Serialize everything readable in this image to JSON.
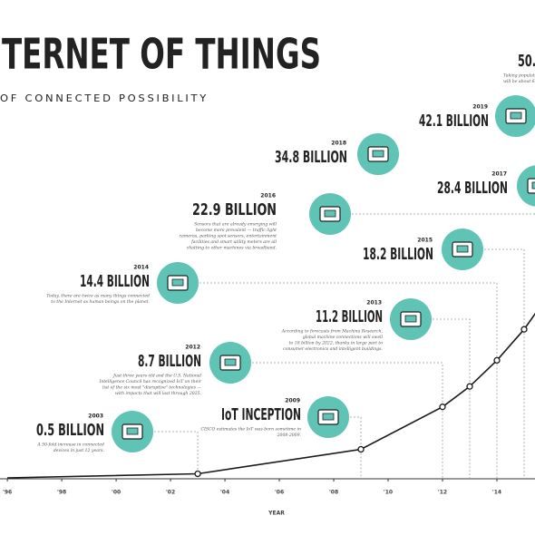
{
  "chart_data": {
    "type": "line",
    "title": "TERNET OF THINGS",
    "subtitle": "OF CONNECTED POSSIBILITY",
    "x_label": "YEAR",
    "x": [
      1996,
      2003,
      2009,
      2012,
      2013,
      2014,
      2015,
      2016
    ],
    "values": [
      0,
      0.5,
      3.5,
      8.7,
      11.2,
      14.4,
      18.2,
      22.9
    ],
    "color": "#1a1a1a",
    "xlim": [
      1995.73,
      2015.4
    ],
    "ylim": [
      0,
      50
    ],
    "xticks": [
      {
        "value": 1996,
        "label": "'96"
      },
      {
        "value": 1998,
        "label": "'98"
      },
      {
        "value": 2000,
        "label": "'00"
      },
      {
        "value": 2002,
        "label": "'02"
      },
      {
        "value": 2004,
        "label": "'04"
      },
      {
        "value": 2006,
        "label": "'06"
      },
      {
        "value": 2008,
        "label": "'08"
      },
      {
        "value": 2010,
        "label": "'10"
      },
      {
        "value": 2012,
        "label": "'12"
      },
      {
        "value": 2014,
        "label": "'14"
      }
    ],
    "icon_color": "#5fc4b6",
    "annotations": [
      {
        "year": "2003",
        "label": "0.5 BILLION",
        "text": [
          "A 50-fold increase in connected",
          "devices in just 12 years."
        ]
      },
      {
        "year": "2009",
        "label": "IoT INCEPTION",
        "text": [
          "CISCO estimates the IoT was born sometime in",
          "2008-2009."
        ]
      },
      {
        "year": "2012",
        "label": "8.7 BILLION",
        "text": [
          "Just three years old and the U.S. National",
          "Intelligence Council has recognized IoT on their",
          "list of the six most \"disruptive\" technologies —",
          "with impacts that will last through 2025."
        ]
      },
      {
        "year": "2013",
        "label": "11.2 BILLION",
        "text": [
          "According to forecasts from Machina Research,",
          "global machine connections will swell",
          "to 18 billion by 2022, thanks in large part to",
          "consumer electronics and intelligent buildings."
        ]
      },
      {
        "year": "2014",
        "label": "14.4 BILLION",
        "text": [
          "Today, there are twice as many things connected",
          "to the Internet as human beings on the planet."
        ]
      },
      {
        "year": "2015",
        "label": "18.2 BILLION",
        "text": []
      },
      {
        "year": "2016",
        "label": "22.9 BILLION",
        "text": [
          "Sensors that are already emerging will",
          "become more prevalent — traffic light",
          "cameras, parking spot sensors, entertainment",
          "facilities and smart utility meters are all",
          "chatting to other machines via broadband."
        ]
      },
      {
        "year": "2017",
        "label": "28.4 BILLION",
        "text": []
      },
      {
        "year": "2018",
        "label": "34.8 BILLION",
        "text": []
      },
      {
        "year": "2019",
        "label": "42.1 BILLION",
        "text": []
      },
      {
        "label": "50.",
        "text": [
          "Taking population",
          "will be about 6.6 dev"
        ]
      }
    ]
  }
}
